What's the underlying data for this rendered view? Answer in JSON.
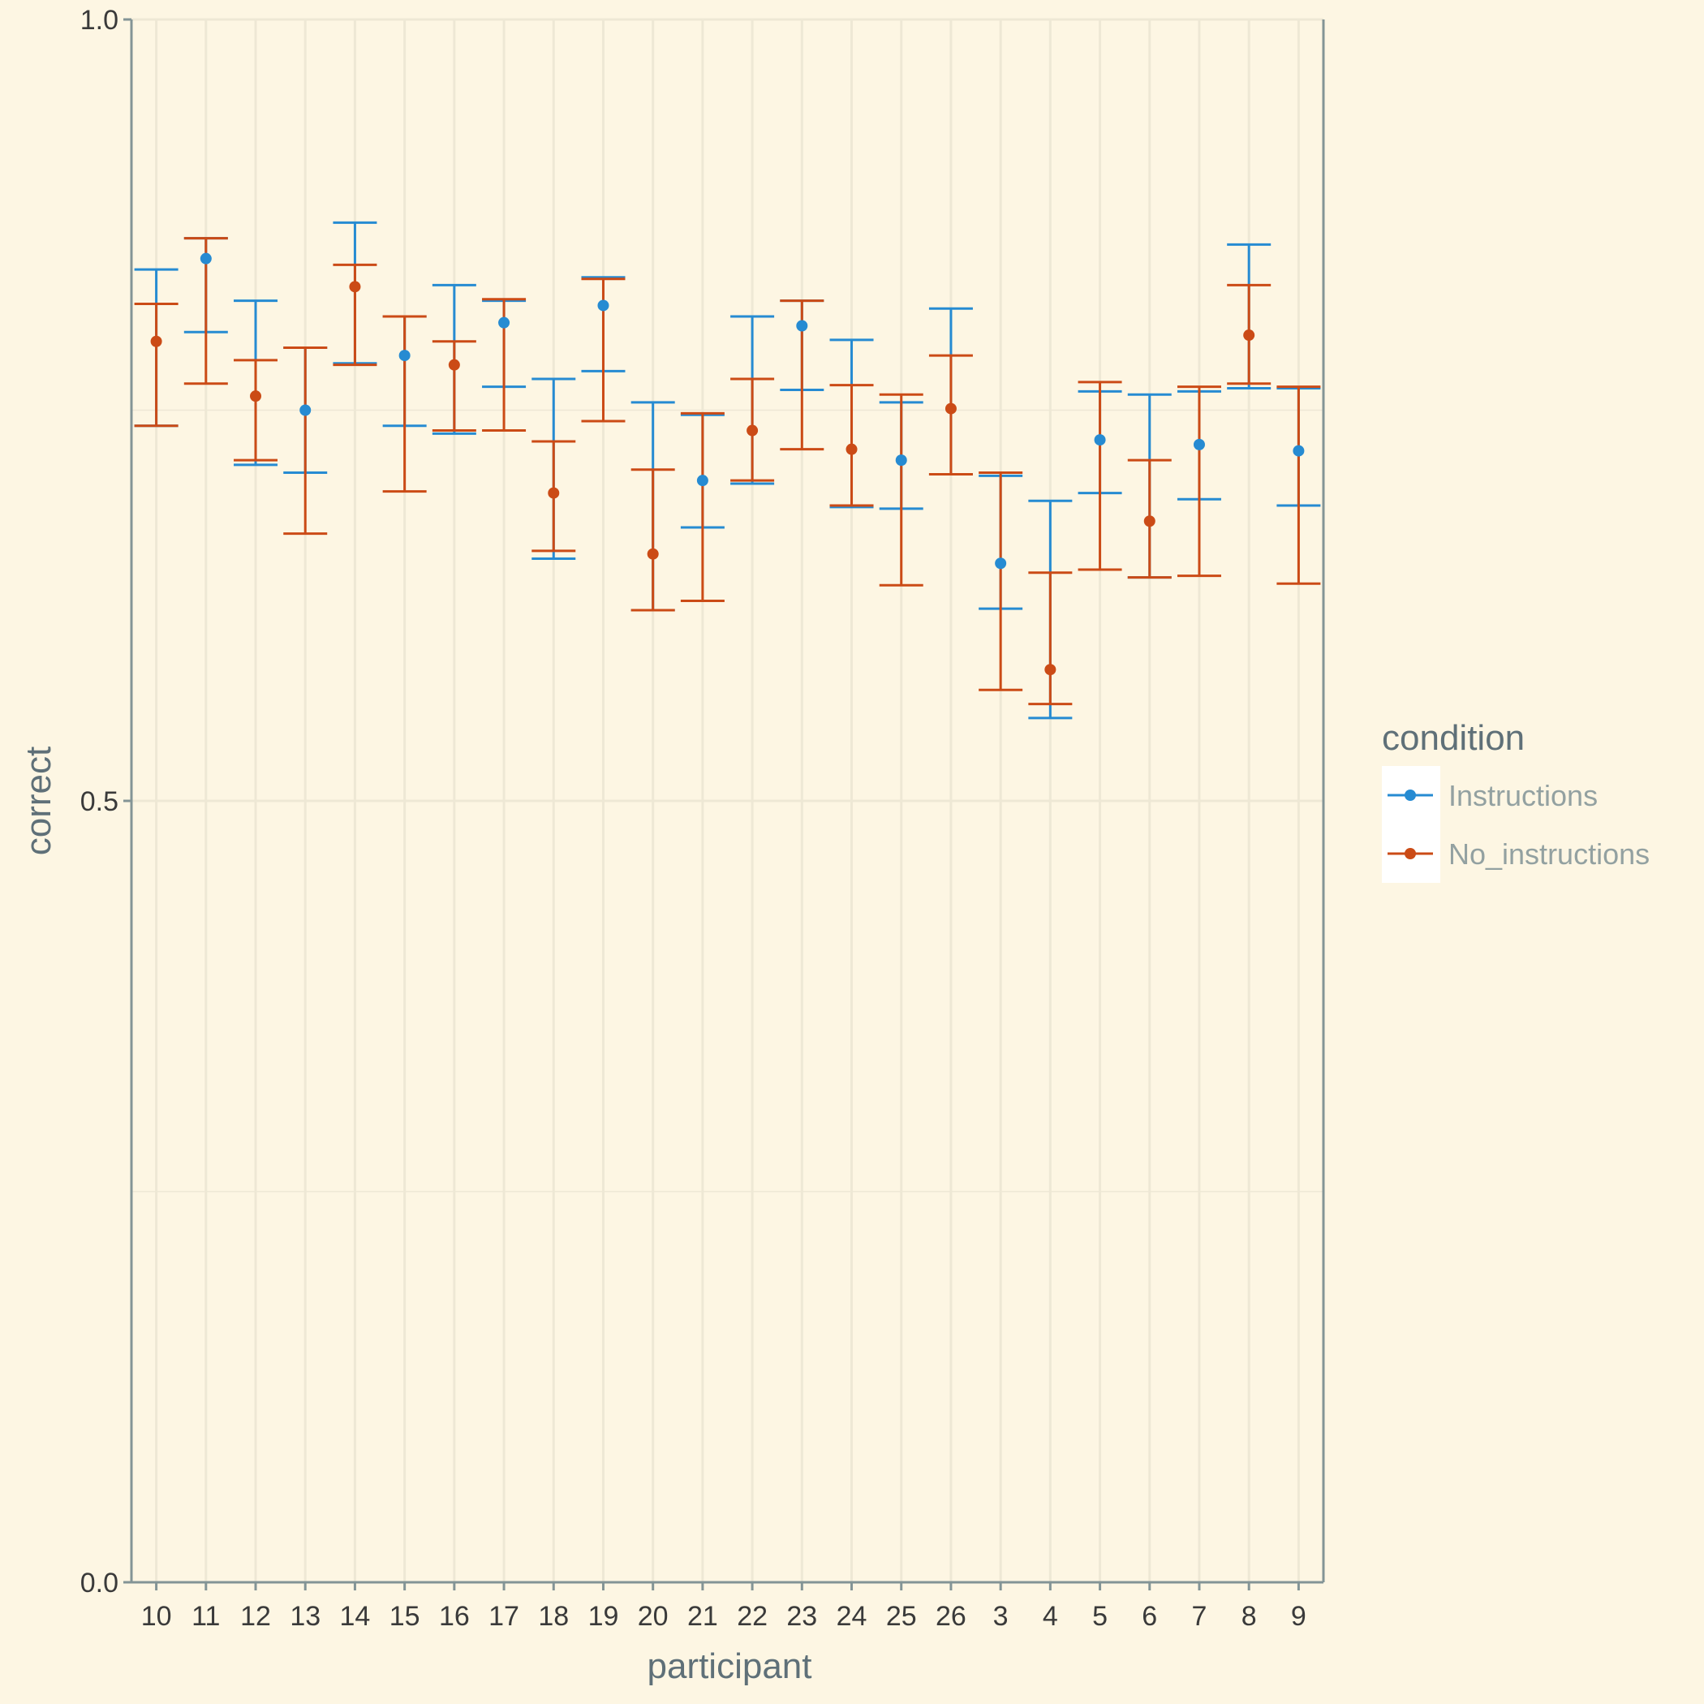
{
  "chart_data": {
    "type": "scatter",
    "subtype": "error-bar",
    "xlabel": "participant",
    "ylabel": "correct",
    "ylim": [
      0,
      1
    ],
    "y_ticks": [
      "0.0",
      "0.5",
      "1.0"
    ],
    "grid": true,
    "categories": [
      "10",
      "11",
      "12",
      "13",
      "14",
      "15",
      "16",
      "17",
      "18",
      "19",
      "20",
      "21",
      "22",
      "23",
      "24",
      "25",
      "26",
      "3",
      "4",
      "5",
      "6",
      "7",
      "8",
      "9"
    ],
    "legend": {
      "title": "condition",
      "position": "right"
    },
    "series": [
      {
        "name": "Instructions",
        "color": "#268bd2",
        "points": [
          {
            "x": "10",
            "lower": 0.74,
            "upper": 0.84
          },
          {
            "x": "11",
            "y": 0.847,
            "lower": 0.8,
            "upper": 0.86
          },
          {
            "x": "12",
            "lower": 0.715,
            "upper": 0.82
          },
          {
            "x": "13",
            "y": 0.75,
            "lower": 0.71,
            "upper": 0.79
          },
          {
            "x": "14",
            "lower": 0.78,
            "upper": 0.87
          },
          {
            "x": "15",
            "y": 0.785,
            "lower": 0.74,
            "upper": 0.81
          },
          {
            "x": "16",
            "lower": 0.735,
            "upper": 0.83
          },
          {
            "x": "17",
            "y": 0.806,
            "lower": 0.765,
            "upper": 0.82
          },
          {
            "x": "18",
            "lower": 0.655,
            "upper": 0.77
          },
          {
            "x": "19",
            "y": 0.817,
            "lower": 0.775,
            "upper": 0.835
          },
          {
            "x": "20",
            "lower": 0.622,
            "upper": 0.755
          },
          {
            "x": "21",
            "y": 0.705,
            "lower": 0.675,
            "upper": 0.747
          },
          {
            "x": "22",
            "lower": 0.703,
            "upper": 0.81
          },
          {
            "x": "23",
            "y": 0.804,
            "lower": 0.763,
            "upper": 0.82
          },
          {
            "x": "24",
            "lower": 0.688,
            "upper": 0.795
          },
          {
            "x": "25",
            "y": 0.718,
            "lower": 0.687,
            "upper": 0.755
          },
          {
            "x": "26",
            "lower": 0.709,
            "upper": 0.815
          },
          {
            "x": "3",
            "y": 0.652,
            "lower": 0.623,
            "upper": 0.708
          },
          {
            "x": "4",
            "lower": 0.553,
            "upper": 0.692
          },
          {
            "x": "5",
            "y": 0.731,
            "lower": 0.697,
            "upper": 0.762
          },
          {
            "x": "6",
            "lower": 0.643,
            "upper": 0.76
          },
          {
            "x": "7",
            "y": 0.728,
            "lower": 0.693,
            "upper": 0.762
          },
          {
            "x": "8",
            "lower": 0.764,
            "upper": 0.856
          },
          {
            "x": "9",
            "y": 0.724,
            "lower": 0.689,
            "upper": 0.764
          }
        ]
      },
      {
        "name": "No_instructions",
        "color": "#cb4b16",
        "points": [
          {
            "x": "10",
            "y": 0.794,
            "lower": 0.74,
            "upper": 0.818
          },
          {
            "x": "11",
            "lower": 0.767,
            "upper": 0.86
          },
          {
            "x": "12",
            "y": 0.759,
            "lower": 0.718,
            "upper": 0.782
          },
          {
            "x": "13",
            "lower": 0.671,
            "upper": 0.79
          },
          {
            "x": "14",
            "y": 0.829,
            "lower": 0.779,
            "upper": 0.843
          },
          {
            "x": "15",
            "lower": 0.698,
            "upper": 0.81
          },
          {
            "x": "16",
            "y": 0.779,
            "lower": 0.737,
            "upper": 0.794
          },
          {
            "x": "17",
            "lower": 0.737,
            "upper": 0.821
          },
          {
            "x": "18",
            "y": 0.697,
            "lower": 0.66,
            "upper": 0.73
          },
          {
            "x": "19",
            "lower": 0.743,
            "upper": 0.834
          },
          {
            "x": "20",
            "y": 0.658,
            "lower": 0.622,
            "upper": 0.712
          },
          {
            "x": "21",
            "lower": 0.628,
            "upper": 0.748
          },
          {
            "x": "22",
            "y": 0.737,
            "lower": 0.705,
            "upper": 0.77
          },
          {
            "x": "23",
            "lower": 0.725,
            "upper": 0.82
          },
          {
            "x": "24",
            "y": 0.725,
            "lower": 0.689,
            "upper": 0.766
          },
          {
            "x": "25",
            "lower": 0.638,
            "upper": 0.76
          },
          {
            "x": "26",
            "y": 0.751,
            "lower": 0.709,
            "upper": 0.785
          },
          {
            "x": "3",
            "lower": 0.571,
            "upper": 0.71
          },
          {
            "x": "4",
            "y": 0.584,
            "lower": 0.562,
            "upper": 0.646
          },
          {
            "x": "5",
            "lower": 0.648,
            "upper": 0.768
          },
          {
            "x": "6",
            "y": 0.679,
            "lower": 0.643,
            "upper": 0.718
          },
          {
            "x": "7",
            "lower": 0.644,
            "upper": 0.765
          },
          {
            "x": "8",
            "y": 0.798,
            "lower": 0.767,
            "upper": 0.83
          },
          {
            "x": "9",
            "lower": 0.639,
            "upper": 0.765
          }
        ]
      }
    ]
  }
}
